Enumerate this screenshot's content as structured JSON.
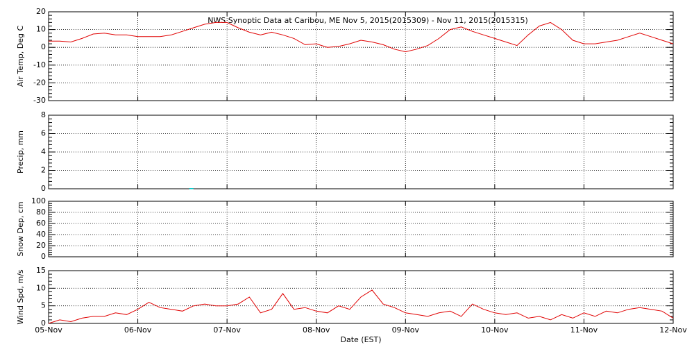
{
  "title": "NWS Synoptic Data at Caribou, ME   Nov  5, 2015(2015309) - Nov 11, 2015(2015315)",
  "x_axis": {
    "xlabel": "Date (EST)",
    "xlim": [
      0,
      7
    ],
    "xticks": [
      {
        "value": 0,
        "label": "05-Nov"
      },
      {
        "value": 1,
        "label": "06-Nov"
      },
      {
        "value": 2,
        "label": "07-Nov"
      },
      {
        "value": 3,
        "label": "08-Nov"
      },
      {
        "value": 4,
        "label": "09-Nov"
      },
      {
        "value": 5,
        "label": "10-Nov"
      },
      {
        "value": 6,
        "label": "11-Nov"
      },
      {
        "value": 7,
        "label": "12-Nov"
      }
    ],
    "grid": true
  },
  "chart_data": [
    {
      "type": "line",
      "ylabel": "Air Temp, Deg C",
      "ylim": [
        -30,
        20
      ],
      "yticks": [
        -30,
        -20,
        -10,
        0,
        10,
        20
      ],
      "grid": true,
      "series": [
        {
          "color": "#e00000",
          "x": [
            0,
            0.125,
            0.25,
            0.375,
            0.5,
            0.625,
            0.75,
            0.875,
            1,
            1.125,
            1.25,
            1.375,
            1.5,
            1.625,
            1.75,
            1.875,
            2,
            2.125,
            2.25,
            2.375,
            2.5,
            2.625,
            2.75,
            2.875,
            3,
            3.125,
            3.25,
            3.375,
            3.5,
            3.625,
            3.75,
            3.875,
            4,
            4.125,
            4.25,
            4.375,
            4.5,
            4.625,
            4.75,
            4.875,
            5,
            5.125,
            5.25,
            5.375,
            5.5,
            5.625,
            5.75,
            5.875,
            6,
            6.125,
            6.25,
            6.375,
            6.5,
            6.625,
            6.75,
            6.875,
            7
          ],
          "values": [
            3.5,
            3.5,
            3,
            5,
            7.5,
            8,
            7,
            7,
            6,
            6,
            6,
            7,
            9,
            11,
            13,
            14,
            14,
            11,
            8.5,
            7,
            8.5,
            7,
            5,
            1.5,
            2,
            0,
            0.5,
            2,
            4,
            3,
            1.5,
            -1,
            -2.5,
            -1,
            1,
            5,
            10,
            11.5,
            9,
            7,
            5,
            3,
            1,
            7,
            12,
            14,
            10,
            4,
            2,
            2,
            3,
            4,
            6,
            8,
            6,
            4,
            2
          ]
        }
      ]
    },
    {
      "type": "bar",
      "ylabel": "Precip, mm",
      "ylim": [
        0,
        8
      ],
      "yticks": [
        0,
        2,
        4,
        6,
        8
      ],
      "grid": true,
      "series": [
        {
          "color": "#00c8c8",
          "x": [
            1.6
          ],
          "values": [
            0
          ]
        }
      ]
    },
    {
      "type": "line",
      "ylabel": "Snow Dep, cm",
      "ylim": [
        0,
        100
      ],
      "yticks": [
        0,
        20,
        40,
        60,
        80,
        100
      ],
      "grid": true,
      "series": []
    },
    {
      "type": "line",
      "ylabel": "Wind Spd, m/s",
      "ylim": [
        0,
        15
      ],
      "yticks": [
        0,
        5,
        10,
        15
      ],
      "grid": true,
      "series": [
        {
          "color": "#e00000",
          "x": [
            0,
            0.125,
            0.25,
            0.375,
            0.5,
            0.625,
            0.75,
            0.875,
            1,
            1.125,
            1.25,
            1.375,
            1.5,
            1.625,
            1.75,
            1.875,
            2,
            2.125,
            2.25,
            2.375,
            2.5,
            2.625,
            2.75,
            2.875,
            3,
            3.125,
            3.25,
            3.375,
            3.5,
            3.625,
            3.75,
            3.875,
            4,
            4.125,
            4.25,
            4.375,
            4.5,
            4.625,
            4.75,
            4.875,
            5,
            5.125,
            5.25,
            5.375,
            5.5,
            5.625,
            5.75,
            5.875,
            6,
            6.125,
            6.25,
            6.375,
            6.5,
            6.625,
            6.75,
            6.875,
            7
          ],
          "values": [
            0,
            1,
            0.5,
            1.5,
            2,
            2,
            3,
            2.5,
            4,
            6,
            4.5,
            4,
            3.5,
            5,
            5.5,
            5,
            5,
            5.5,
            7.5,
            3,
            4,
            8.5,
            4,
            4.5,
            3.5,
            3,
            5,
            4,
            7.5,
            9.5,
            5.5,
            4.5,
            3,
            2.5,
            2,
            3,
            3.5,
            2,
            5.5,
            4,
            3,
            2.5,
            3,
            1.5,
            2,
            1,
            2.5,
            1.5,
            3,
            2,
            3.5,
            3,
            4,
            4.5,
            4,
            3.5,
            1.5
          ]
        }
      ]
    }
  ]
}
